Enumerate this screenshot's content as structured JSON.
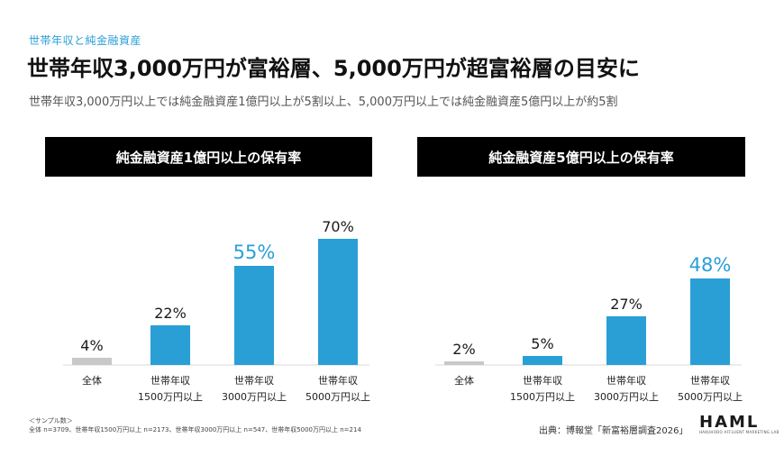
{
  "header": {
    "eyebrow": "世帯年収と純金融資産",
    "title": "世帯年収3,000万円が富裕層、5,000万円が超富裕層の目安に",
    "subtitle": "世帯年収3,000万円以上では純金融資産1億円以上が5割以上、5,000万円以上では純金融資産5億円以上が約5割"
  },
  "colors": {
    "bar": "#2a9fd6",
    "bar_muted": "#c8c8c8",
    "highlight_text": "#2a9fd6",
    "text": "#1a1a1a"
  },
  "chart_data": [
    {
      "type": "bar",
      "title": "純金融資産1億円以上の保有率",
      "categories": [
        [
          "全体"
        ],
        [
          "世帯年収",
          "1500万円以上"
        ],
        [
          "世帯年収",
          "3000万円以上"
        ],
        [
          "世帯年収",
          "5000万円以上"
        ]
      ],
      "values": [
        4,
        22,
        55,
        70
      ],
      "labels": [
        "4%",
        "22%",
        "55%",
        "70%"
      ],
      "highlight": [
        false,
        false,
        true,
        false
      ],
      "muted": [
        true,
        false,
        false,
        false
      ],
      "ylim": [
        0,
        80
      ],
      "grid": false
    },
    {
      "type": "bar",
      "title": "純金融資産5億円以上の保有率",
      "categories": [
        [
          "全体"
        ],
        [
          "世帯年収",
          "1500万円以上"
        ],
        [
          "世帯年収",
          "3000万円以上"
        ],
        [
          "世帯年収",
          "5000万円以上"
        ]
      ],
      "values": [
        2,
        5,
        27,
        48
      ],
      "labels": [
        "2%",
        "5%",
        "27%",
        "48%"
      ],
      "highlight": [
        false,
        false,
        false,
        true
      ],
      "muted": [
        true,
        false,
        false,
        false
      ],
      "ylim": [
        0,
        80
      ],
      "grid": false
    }
  ],
  "footer": {
    "sample_heading": "＜サンプル数＞",
    "sample_text": "全体 n=3709、世帯年収1500万円以上 n=2173、世帯年収3000万円以上 n=547、世帯年収5000万円以上 n=214",
    "source": "出典：博報堂「新富裕層調査2026」",
    "logo": "HAML",
    "logo_sub": "HAKUHODO AFFLUENT MARKETING LAB"
  }
}
